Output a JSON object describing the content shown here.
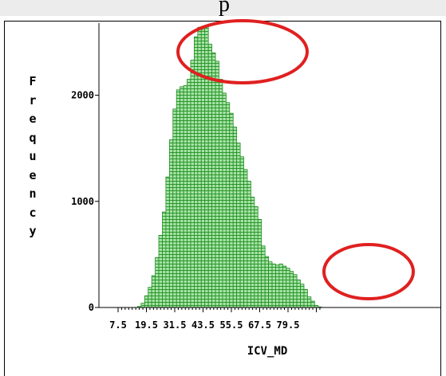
{
  "header": {
    "fragment": "p"
  },
  "chart_data": {
    "type": "bar",
    "title": "",
    "xlabel": "ICV_MD",
    "ylabel": "Frequency",
    "ylim": [
      0,
      2900
    ],
    "yticks": [
      0,
      1000,
      2000
    ],
    "ytick_labels": [
      "0",
      "1000",
      "2000"
    ],
    "xtick_labels": [
      "7.5",
      "19.5",
      "31.5",
      "43.5",
      "55.5",
      "67.5",
      "79.5"
    ],
    "bin_width": 1.5,
    "first_bin_center": 7.5,
    "values": [
      0,
      0,
      0,
      0,
      0,
      0,
      10,
      40,
      110,
      190,
      300,
      470,
      680,
      900,
      1230,
      1580,
      1870,
      2050,
      2080,
      2090,
      2150,
      2330,
      2550,
      2640,
      2620,
      2650,
      2480,
      2400,
      2320,
      2150,
      2020,
      1930,
      1830,
      1700,
      1550,
      1420,
      1300,
      1190,
      1040,
      950,
      830,
      580,
      480,
      430,
      410,
      400,
      410,
      390,
      370,
      340,
      310,
      260,
      220,
      170,
      100,
      60,
      20,
      5
    ],
    "annotations": [
      {
        "shape": "ellipse",
        "color": "#e02020",
        "around": "peak"
      },
      {
        "shape": "ellipse",
        "color": "#e02020",
        "around": "right shoulder"
      }
    ],
    "colors": {
      "bar_fill": "#8fd88f",
      "bar_stroke": "#1f8a1f",
      "annotation": "#e02020"
    },
    "grid": false,
    "legend": "none"
  }
}
